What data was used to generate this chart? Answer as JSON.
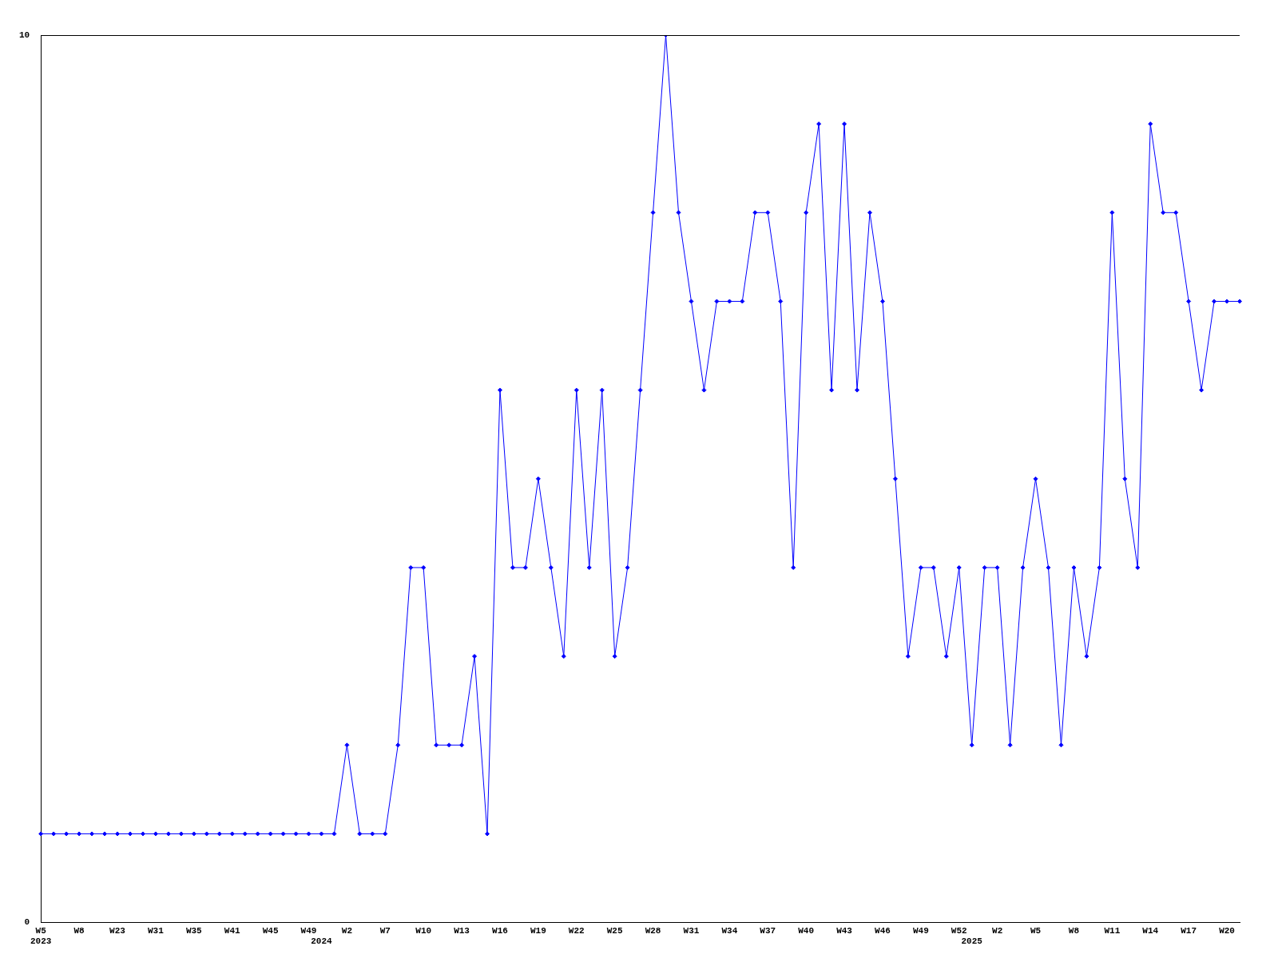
{
  "chart_data": {
    "type": "line",
    "categories": [
      "W5\n2023",
      null,
      null,
      "W8",
      null,
      null,
      "W23",
      null,
      null,
      "W31",
      null,
      null,
      "W35",
      null,
      null,
      "W41",
      null,
      null,
      "W45",
      null,
      null,
      "W49",
      "\n2024",
      null,
      "W2",
      null,
      null,
      "W7",
      null,
      null,
      "W10",
      null,
      null,
      "W13",
      null,
      null,
      "W16",
      null,
      null,
      "W19",
      null,
      null,
      "W22",
      null,
      null,
      "W25",
      null,
      null,
      "W28",
      null,
      null,
      "W31",
      null,
      null,
      "W34",
      null,
      null,
      "W37",
      null,
      null,
      "W40",
      null,
      null,
      "W43",
      null,
      null,
      "W46",
      null,
      null,
      "W49",
      null,
      null,
      "W52",
      "\n2025",
      null,
      "W2",
      null,
      null,
      "W5",
      null,
      null,
      "W8",
      null,
      null,
      "W11",
      null,
      null,
      "W14",
      null,
      null,
      "W17",
      null,
      null,
      "W20",
      null
    ],
    "series": [
      {
        "color": "#0000ff",
        "values": [
          1,
          1,
          1,
          1,
          1,
          1,
          1,
          1,
          1,
          1,
          1,
          1,
          1,
          1,
          1,
          1,
          1,
          1,
          1,
          1,
          1,
          1,
          1,
          1,
          2,
          1,
          1,
          1,
          2,
          4,
          4,
          2,
          2,
          2,
          3,
          1,
          6,
          4,
          4,
          5,
          4,
          3,
          6,
          4,
          6,
          3,
          4,
          6,
          8,
          10,
          8,
          7,
          6,
          7,
          7,
          7,
          8,
          8,
          7,
          4,
          8,
          9,
          6,
          9,
          6,
          8,
          7,
          5,
          3,
          4,
          4,
          3,
          4,
          2,
          4,
          4,
          2,
          4,
          5,
          4,
          2,
          4,
          3,
          4,
          8,
          5,
          4,
          9,
          8,
          8,
          7,
          6,
          7,
          7,
          7
        ]
      }
    ],
    "ylim": [
      0,
      10
    ],
    "yticks": [
      0,
      10
    ],
    "grid": false,
    "legend": false,
    "marker": "diamond",
    "line_style": "solid"
  }
}
